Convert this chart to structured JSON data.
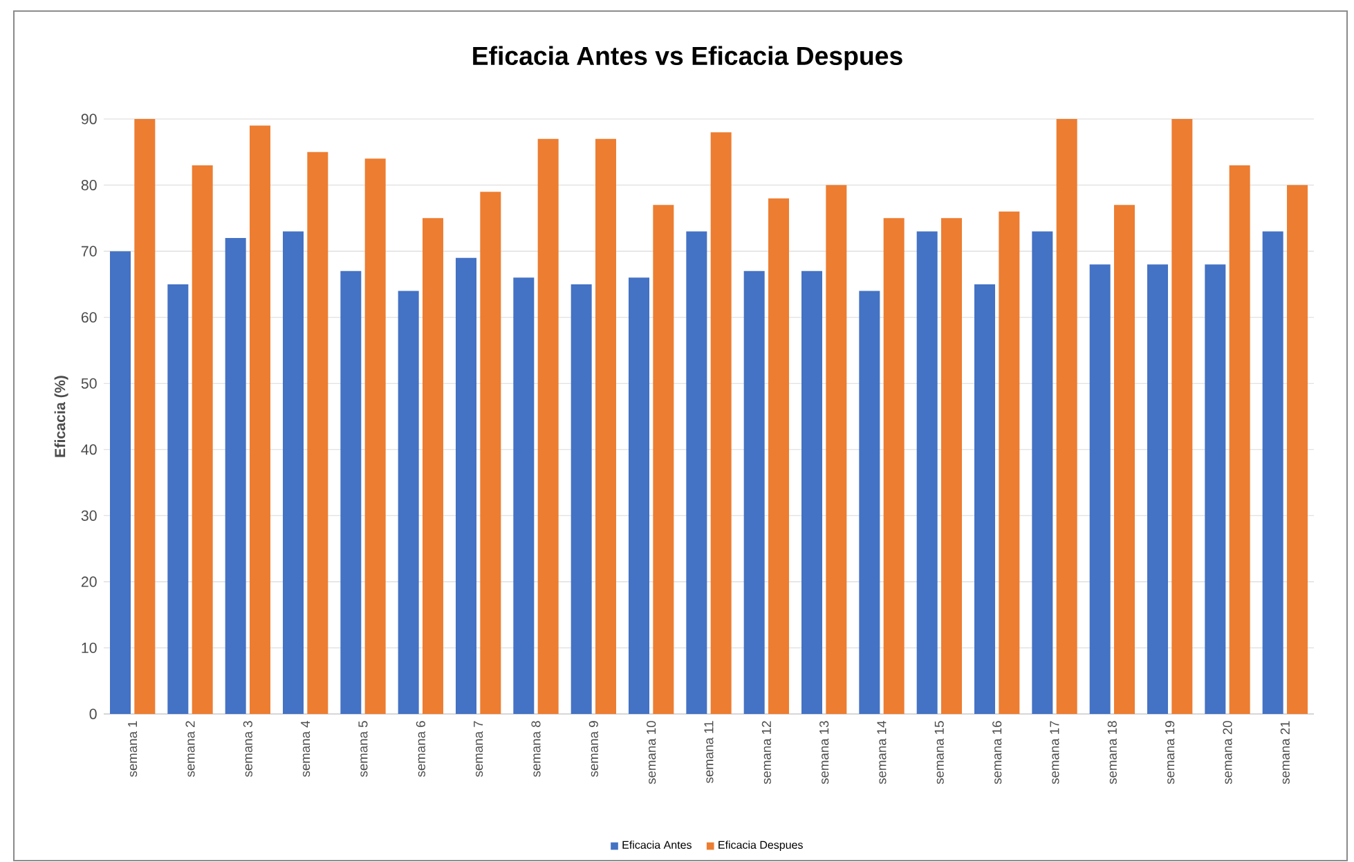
{
  "chart_data": {
    "type": "bar",
    "title": "Eficacia Antes vs Eficacia Despues",
    "ylabel": "Eficacia (%)",
    "categories": [
      "semana 1",
      "semana 2",
      "semana 3",
      "semana 4",
      "semana 5",
      "semana 6",
      "semana 7",
      "semana 8",
      "semana 9",
      "semana 10",
      "semana 11",
      "semana 12",
      "semana 13",
      "semana 14",
      "semana 15",
      "semana 16",
      "semana 17",
      "semana 18",
      "semana 19",
      "semana 20",
      "semana 21"
    ],
    "series": [
      {
        "name": "Eficacia Antes",
        "color": "#4472c4",
        "values": [
          70,
          65,
          72,
          73,
          67,
          64,
          69,
          66,
          65,
          66,
          73,
          67,
          67,
          64,
          73,
          65,
          73,
          68,
          68,
          68,
          73
        ]
      },
      {
        "name": "Eficacia Despues",
        "color": "#ed7d31",
        "values": [
          90,
          83,
          89,
          85,
          84,
          75,
          79,
          87,
          87,
          77,
          88,
          78,
          80,
          75,
          75,
          76,
          90,
          77,
          90,
          83,
          80
        ]
      }
    ],
    "ylim": [
      0,
      90
    ],
    "yticks": [
      0,
      10,
      20,
      30,
      40,
      50,
      60,
      70,
      80,
      90
    ],
    "grid": "y",
    "legend": "bottom"
  }
}
